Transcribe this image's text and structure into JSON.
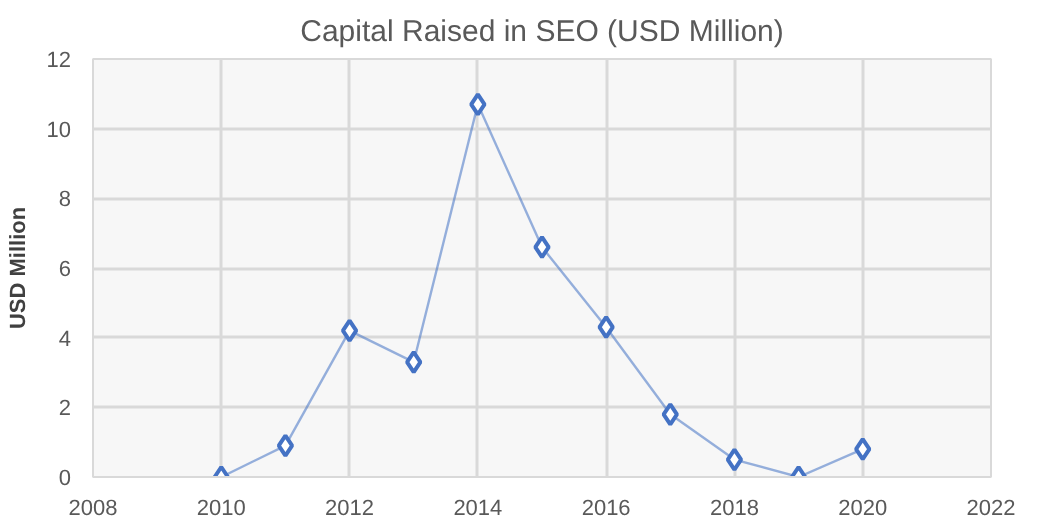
{
  "chart_data": {
    "type": "line",
    "title": "Capital Raised in SEO (USD Million)",
    "ylabel": "USD Million",
    "x": [
      2010,
      2011,
      2012,
      2013,
      2014,
      2015,
      2016,
      2017,
      2018,
      2019,
      2020
    ],
    "series": [
      {
        "color": "#4472c4",
        "values": [
          0,
          0.9,
          4.2,
          3.3,
          10.7,
          6.6,
          4.3,
          1.8,
          0.5,
          0,
          0.8
        ]
      }
    ],
    "xlim": [
      2008,
      2022
    ],
    "xticks": [
      2008,
      2010,
      2012,
      2014,
      2016,
      2018,
      2020,
      2022
    ],
    "ylim": [
      0,
      12
    ],
    "yticks": [
      0,
      2,
      4,
      6,
      8,
      10,
      12
    ],
    "grid": true,
    "marker": "diamond",
    "line_style": "solid"
  }
}
